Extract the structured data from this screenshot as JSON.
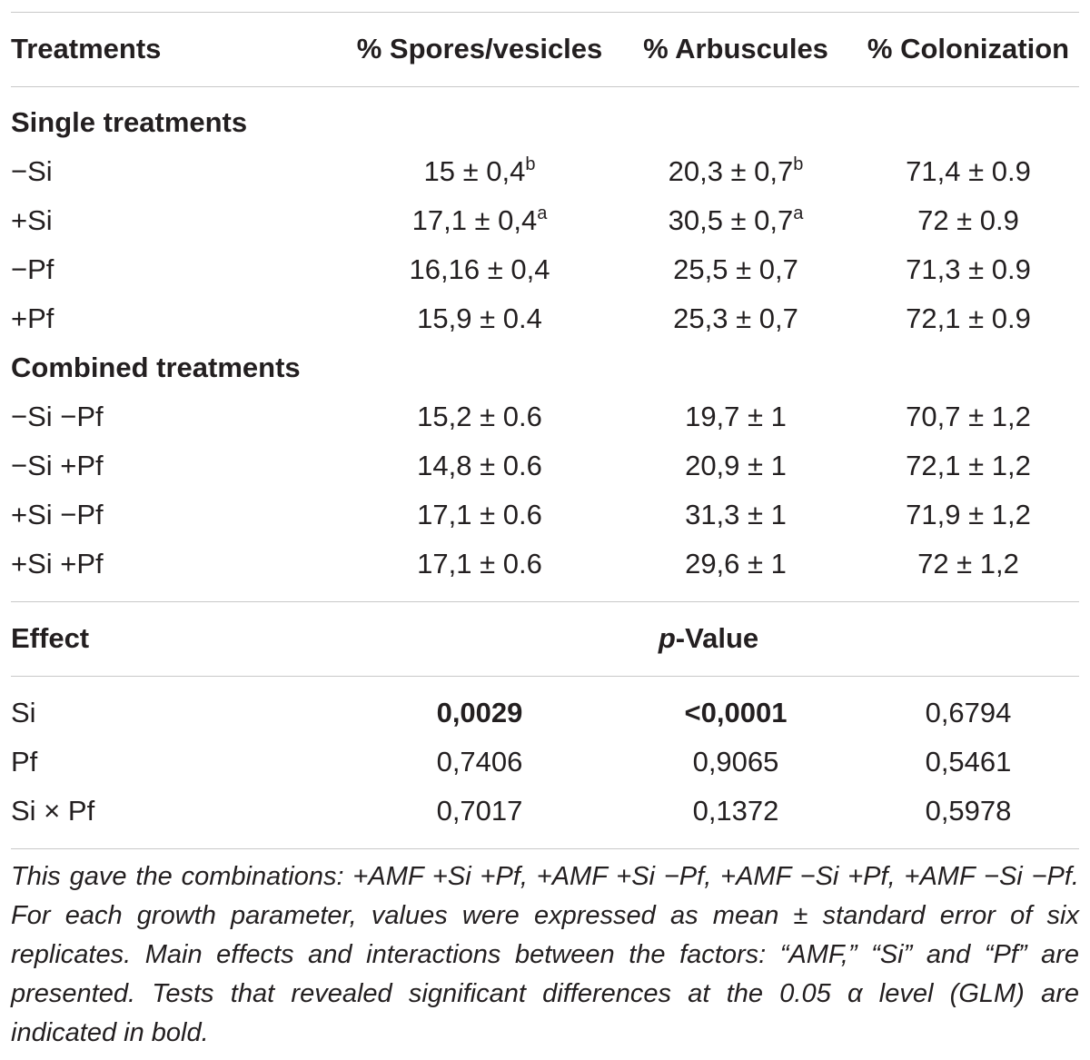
{
  "header": {
    "treatments": "Treatments",
    "spores": "% Spores/vesicles",
    "arbuscules": "% Arbuscules",
    "colonization": "% Colonization"
  },
  "single": {
    "title": "Single treatments",
    "rows": [
      {
        "label": "−Si",
        "spores": "15 ± 0,4",
        "spores_sup": "b",
        "arb": "20,3 ± 0,7",
        "arb_sup": "b",
        "col": "71,4 ± 0.9"
      },
      {
        "label": "+Si",
        "spores": "17,1 ± 0,4",
        "spores_sup": "a",
        "arb": "30,5 ± 0,7",
        "arb_sup": "a",
        "col": "72 ± 0.9"
      },
      {
        "label": "−Pf",
        "spores": "16,16 ± 0,4",
        "arb": "25,5 ± 0,7",
        "col": "71,3 ± 0.9"
      },
      {
        "label": "+Pf",
        "spores": "15,9 ± 0.4",
        "arb": "25,3 ± 0,7",
        "col": "72,1 ± 0.9"
      }
    ]
  },
  "combined": {
    "title": "Combined treatments",
    "rows": [
      {
        "label": "−Si −Pf",
        "spores": "15,2 ± 0.6",
        "arb": "19,7 ± 1",
        "col": "70,7 ± 1,2"
      },
      {
        "label": "−Si +Pf",
        "spores": "14,8 ± 0.6",
        "arb": "20,9 ± 1",
        "col": "72,1 ± 1,2"
      },
      {
        "label": "+Si −Pf",
        "spores": "17,1 ± 0.6",
        "arb": "31,3 ± 1",
        "col": "71,9 ± 1,2"
      },
      {
        "label": "+Si +Pf",
        "spores": "17,1 ± 0.6",
        "arb": "29,6 ± 1",
        "col": "72 ± 1,2"
      }
    ]
  },
  "effects": {
    "effect_label": "Effect",
    "p_italic": "p",
    "p_rest": "-Value",
    "rows": [
      {
        "label": "Si",
        "spores": "0,0029",
        "arb": "<0,0001",
        "col": "0,6794"
      },
      {
        "label": "Pf",
        "spores": "0,7406",
        "arb": "0,9065",
        "col": "0,5461"
      },
      {
        "label": "Si × Pf",
        "spores": "0,7017",
        "arb": "0,1372",
        "col": "0,5978"
      }
    ]
  },
  "footnote": "This gave the combinations: +AMF +Si +Pf, +AMF +Si −Pf, +AMF −Si +Pf, +AMF −Si −Pf. For each growth parameter, values were expressed as mean ± standard error of six replicates. Main effects and interactions between the factors: “AMF,” “Si” and “Pf” are presented. Tests that revealed significant differences at the 0.05 α level (GLM) are indicated in bold."
}
